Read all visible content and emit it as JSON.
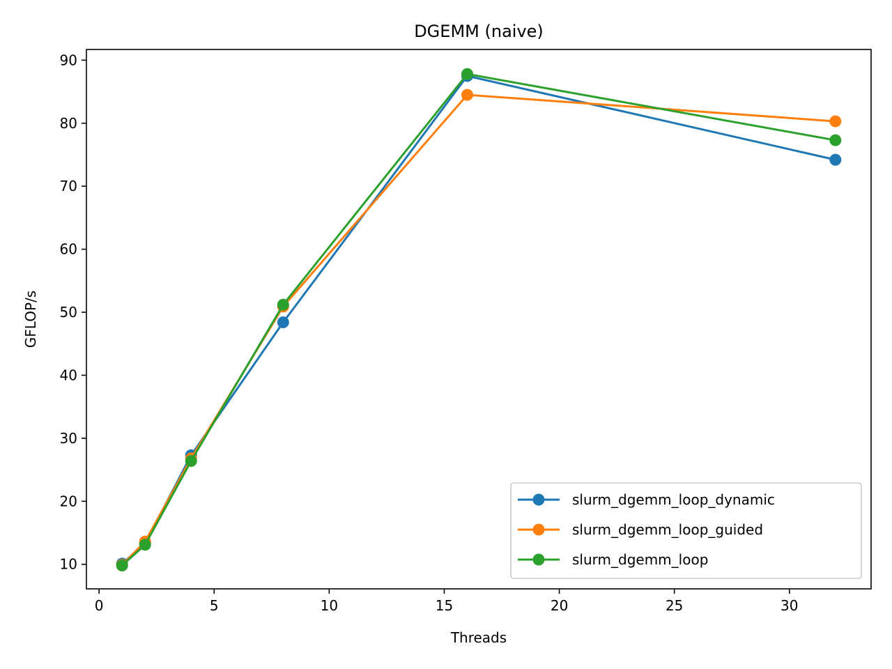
{
  "chart_data": {
    "type": "line",
    "title": "DGEMM (naive)",
    "xlabel": "Threads",
    "ylabel": "GFLOP/s",
    "xlim": [
      -0.55,
      33.55
    ],
    "ylim": [
      6.1,
      91.7
    ],
    "xticks": [
      0,
      5,
      10,
      15,
      20,
      25,
      30
    ],
    "yticks": [
      10,
      20,
      30,
      40,
      50,
      60,
      70,
      80,
      90
    ],
    "grid": false,
    "legend_position": "lower right",
    "x": [
      1,
      2,
      4,
      8,
      16,
      32
    ],
    "series": [
      {
        "name": "slurm_dgemm_loop_dynamic",
        "color": "#1f77b4",
        "marker": "circle",
        "values": [
          10.1,
          13.3,
          27.3,
          48.4,
          87.5,
          74.2
        ]
      },
      {
        "name": "slurm_dgemm_loop_guided",
        "color": "#ff7f0e",
        "marker": "circle",
        "values": [
          9.9,
          13.6,
          26.8,
          50.9,
          84.5,
          80.3
        ]
      },
      {
        "name": "slurm_dgemm_loop",
        "color": "#2ca02c",
        "marker": "circle",
        "values": [
          9.8,
          13.1,
          26.4,
          51.2,
          87.8,
          77.3
        ]
      }
    ]
  }
}
